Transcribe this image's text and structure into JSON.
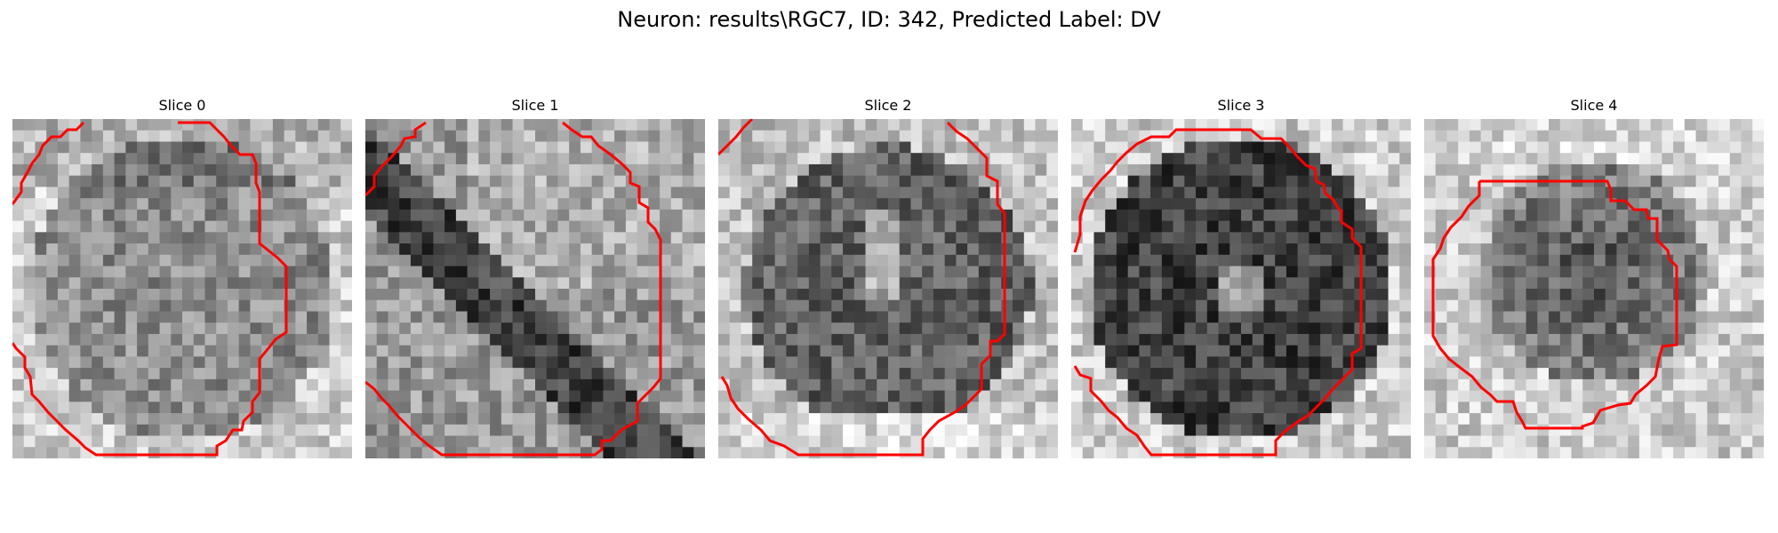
{
  "figure": {
    "title": "Neuron: results\\RGC7, ID: 342, Predicted Label: DV"
  },
  "panels": [
    {
      "title": "Slice 0",
      "seed": 11,
      "grid": 30,
      "kind": "s0",
      "contour_color": "#ff0000"
    },
    {
      "title": "Slice 1",
      "seed": 23,
      "grid": 30,
      "kind": "s1",
      "contour_color": "#ff0000"
    },
    {
      "title": "Slice 2",
      "seed": 37,
      "grid": 30,
      "kind": "s2",
      "contour_color": "#ff0000"
    },
    {
      "title": "Slice 3",
      "seed": 41,
      "grid": 30,
      "kind": "s3",
      "contour_color": "#ff0000"
    },
    {
      "title": "Slice 4",
      "seed": 53,
      "grid": 30,
      "kind": "s4",
      "contour_color": "#ff0000"
    }
  ]
}
